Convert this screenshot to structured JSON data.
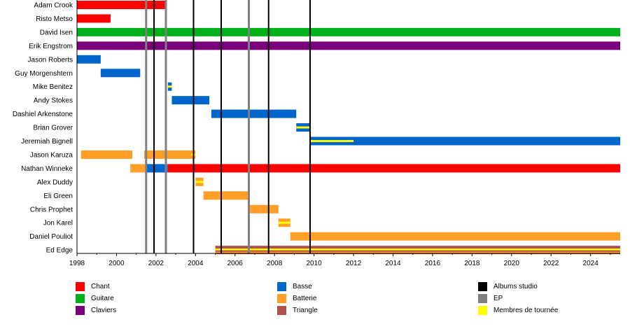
{
  "chart_data": {
    "type": "timeline",
    "xlim": [
      1998,
      2025.5
    ],
    "x_ticks": [
      1998,
      2000,
      2002,
      2004,
      2006,
      2008,
      2010,
      2012,
      2014,
      2016,
      2018,
      2020,
      2022,
      2024
    ],
    "members": [
      "Adam Crook",
      "Risto Metso",
      "David Isen",
      "Erik Engstrom",
      "Jason Roberts",
      "Guy Morgenshtern",
      "Mike Benitez",
      "Andy Stokes",
      "Dashiel Arkenstone",
      "Brian Grover",
      "Jeremiah Bignell",
      "Jason Karuza",
      "Nathan Winneke",
      "Alex Duddy",
      "Eli Green",
      "Chris Prophet",
      "Jon Karel",
      "Daniel Pouliot",
      "Ed Edge"
    ],
    "roles": {
      "chant": {
        "label": "Chant",
        "color": "#ff0000"
      },
      "guitare": {
        "label": "Guitare",
        "color": "#00b21a"
      },
      "claviers": {
        "label": "Claviers",
        "color": "#7a007a"
      },
      "basse": {
        "label": "Basse",
        "color": "#0066cc"
      },
      "batterie": {
        "label": "Batterie",
        "color": "#ff9f28"
      },
      "triangle": {
        "label": "Triangle",
        "color": "#b05050"
      },
      "albums": {
        "label": "Albums studio",
        "color": "#000000"
      },
      "ep": {
        "label": "EP",
        "color": "#808080"
      },
      "tournee": {
        "label": "Membres de tournée",
        "color": "#ffff00"
      }
    },
    "bars": [
      {
        "member": 0,
        "role": "chant",
        "start": 1998,
        "end": 2002.5
      },
      {
        "member": 1,
        "role": "chant",
        "start": 1998,
        "end": 1999.7
      },
      {
        "member": 2,
        "role": "guitare",
        "start": 1998,
        "end": 2025.5
      },
      {
        "member": 3,
        "role": "claviers",
        "start": 1998,
        "end": 2025.5
      },
      {
        "member": 4,
        "role": "basse",
        "start": 1998,
        "end": 1999.2
      },
      {
        "member": 5,
        "role": "basse",
        "start": 1999.2,
        "end": 2001.2
      },
      {
        "member": 6,
        "role": "basse",
        "start": 2002.6,
        "end": 2002.8,
        "touring": true
      },
      {
        "member": 7,
        "role": "basse",
        "start": 2002.8,
        "end": 2004.7
      },
      {
        "member": 8,
        "role": "basse",
        "start": 2004.8,
        "end": 2009.1
      },
      {
        "member": 9,
        "role": "basse",
        "start": 2009.1,
        "end": 2009.8,
        "touring": true
      },
      {
        "member": 10,
        "role": "basse",
        "start": 2009.8,
        "end": 2025.5
      },
      {
        "member": 10,
        "role": "tournee",
        "start": 2009.8,
        "end": 2012,
        "overlay": "stripe"
      },
      {
        "member": 11,
        "role": "batterie",
        "start": 1998.2,
        "end": 2000.8
      },
      {
        "member": 11,
        "role": "batterie",
        "start": 2001.4,
        "end": 2004.0
      },
      {
        "member": 11,
        "role": "tournee",
        "start": 2003.8,
        "end": 2004.0,
        "overlay": "stripe"
      },
      {
        "member": 12,
        "role": "batterie",
        "start": 2000.7,
        "end": 2001.5
      },
      {
        "member": 12,
        "role": "basse",
        "start": 2001.5,
        "end": 2002.6
      },
      {
        "member": 12,
        "role": "chant",
        "start": 2002.6,
        "end": 2025.5
      },
      {
        "member": 13,
        "role": "batterie",
        "start": 2004.0,
        "end": 2004.4,
        "touring": true
      },
      {
        "member": 14,
        "role": "batterie",
        "start": 2004.4,
        "end": 2006.7
      },
      {
        "member": 15,
        "role": "batterie",
        "start": 2006.7,
        "end": 2008.2
      },
      {
        "member": 16,
        "role": "batterie",
        "start": 2008.2,
        "end": 2008.8,
        "touring": true
      },
      {
        "member": 17,
        "role": "batterie",
        "start": 2008.8,
        "end": 2025.5
      },
      {
        "member": 18,
        "role": "triangle",
        "start": 2005.0,
        "end": 2025.5,
        "edge": true
      }
    ],
    "album_lines": [
      2001.9,
      2003.9,
      2005.3,
      2007.7,
      2009.8
    ],
    "ep_lines": [
      2001.5,
      2002.5,
      2006.7
    ]
  },
  "legend": {
    "col1": [
      {
        "key": "chant",
        "label": "Chant"
      },
      {
        "key": "guitare",
        "label": "Guitare"
      },
      {
        "key": "claviers",
        "label": "Claviers"
      }
    ],
    "col2": [
      {
        "key": "basse",
        "label": "Basse"
      },
      {
        "key": "batterie",
        "label": "Batterie"
      },
      {
        "key": "triangle",
        "label": "Triangle"
      }
    ],
    "col3": [
      {
        "key": "albums",
        "label": "Albums studio"
      },
      {
        "key": "ep",
        "label": "EP"
      },
      {
        "key": "tournee",
        "label": "Membres de tournée"
      }
    ]
  }
}
